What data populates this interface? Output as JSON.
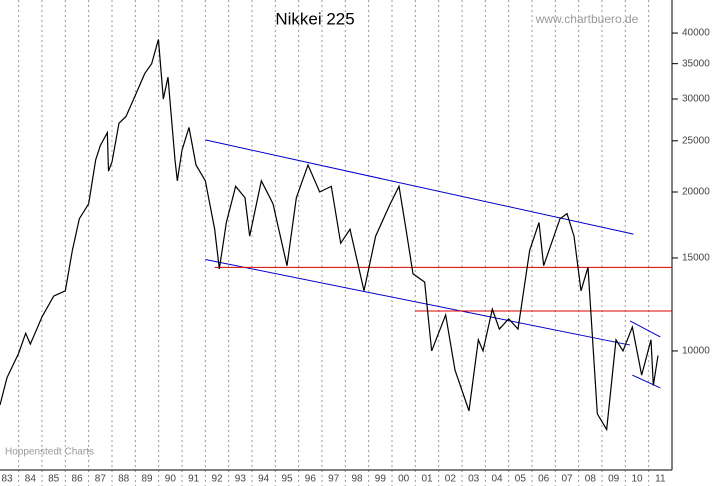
{
  "chart_data": {
    "type": "line",
    "title": "Nikkei 225",
    "source": "www.chartbuero.de",
    "credit": "Hoppenstedt Charts",
    "log_scale": true,
    "grid": true,
    "xlim": [
      1983.2,
      2012
    ],
    "ylim": [
      5950,
      46200
    ],
    "yticks": [
      10000,
      15000,
      20000,
      25000,
      30000,
      35000,
      40000
    ],
    "xgrid": [
      1984,
      1985,
      1986,
      1987,
      1988,
      1989,
      1990,
      1991,
      1992,
      1993,
      1994,
      1995,
      1996,
      1997,
      1998,
      1999,
      2000,
      2001,
      2002,
      2003,
      2004,
      2005,
      2006,
      2007,
      2008,
      2009,
      2010,
      2011
    ],
    "xticks": [
      {
        "value": 1983.5,
        "label": "83"
      },
      {
        "value": 1984.5,
        "label": "84"
      },
      {
        "value": 1985.5,
        "label": "85"
      },
      {
        "value": 1986.5,
        "label": "86"
      },
      {
        "value": 1987.5,
        "label": "87"
      },
      {
        "value": 1988.5,
        "label": "88"
      },
      {
        "value": 1989.5,
        "label": "89"
      },
      {
        "value": 1990.5,
        "label": "90"
      },
      {
        "value": 1991.5,
        "label": "91"
      },
      {
        "value": 1992.5,
        "label": "92"
      },
      {
        "value": 1993.5,
        "label": "93"
      },
      {
        "value": 1994.5,
        "label": "94"
      },
      {
        "value": 1995.5,
        "label": "95"
      },
      {
        "value": 1996.5,
        "label": "96"
      },
      {
        "value": 1997.5,
        "label": "97"
      },
      {
        "value": 1998.5,
        "label": "98"
      },
      {
        "value": 1999.5,
        "label": "99"
      },
      {
        "value": 2000.5,
        "label": "00"
      },
      {
        "value": 2001.5,
        "label": "01"
      },
      {
        "value": 2002.5,
        "label": "02"
      },
      {
        "value": 2003.5,
        "label": "03"
      },
      {
        "value": 2004.5,
        "label": "04"
      },
      {
        "value": 2005.5,
        "label": "05"
      },
      {
        "value": 2006.5,
        "label": "06"
      },
      {
        "value": 2007.5,
        "label": "07"
      },
      {
        "value": 2008.5,
        "label": "08"
      },
      {
        "value": 2009.5,
        "label": "09"
      },
      {
        "value": 2010.5,
        "label": "10"
      },
      {
        "value": 2011.5,
        "label": "11"
      }
    ],
    "x": [
      1983.2,
      1983.5,
      1984.0,
      1984.3,
      1984.5,
      1985.0,
      1985.5,
      1986.0,
      1986.3,
      1986.6,
      1987.0,
      1987.3,
      1987.5,
      1987.8,
      1987.85,
      1988.0,
      1988.3,
      1988.6,
      1989.0,
      1989.4,
      1989.7,
      1989.99,
      1990.2,
      1990.4,
      1990.7,
      1990.8,
      1991.0,
      1991.3,
      1991.6,
      1992.0,
      1992.4,
      1992.6,
      1992.9,
      1993.3,
      1993.7,
      1993.9,
      1994.4,
      1994.9,
      1995.5,
      1995.9,
      1996.4,
      1996.9,
      1997.4,
      1997.8,
      1998.2,
      1998.8,
      1999.3,
      1999.9,
      2000.3,
      2000.6,
      2000.9,
      2001.4,
      2001.7,
      2002.3,
      2002.7,
      2003.3,
      2003.7,
      2003.9,
      2004.3,
      2004.6,
      2005.0,
      2005.4,
      2005.9,
      2006.3,
      2006.5,
      2007.2,
      2007.5,
      2007.8,
      2008.1,
      2008.4,
      2008.8,
      2009.2,
      2009.6,
      2009.9,
      2010.3,
      2010.7,
      2011.1,
      2011.2,
      2011.4
    ],
    "series": [
      {
        "color": "#000000",
        "values": [
          7900,
          8900,
          9900,
          10800,
          10300,
          11600,
          12700,
          13000,
          15500,
          17800,
          19000,
          23000,
          24500,
          25900,
          21900,
          22800,
          27000,
          27800,
          30500,
          33500,
          35000,
          38900,
          30000,
          33000,
          23000,
          21000,
          24000,
          26500,
          22500,
          21000,
          17000,
          14300,
          17500,
          20500,
          19500,
          16500,
          21000,
          19000,
          14500,
          19500,
          22500,
          20000,
          20500,
          16000,
          17000,
          13000,
          16500,
          18900,
          20500,
          17000,
          14000,
          13500,
          10000,
          11700,
          9200,
          7700,
          10500,
          10000,
          12000,
          11000,
          11500,
          11000,
          15500,
          17500,
          14500,
          17800,
          18200,
          16500,
          13000,
          14400,
          7600,
          7100,
          10500,
          10000,
          11100,
          9000,
          10500,
          8600,
          9800
        ]
      }
    ],
    "lines": [
      {
        "color": "#0000cc",
        "x": [
          1992.0,
          2010.35
        ],
        "y": [
          25100,
          16640
        ]
      },
      {
        "color": "#0000cc",
        "x": [
          1992.0,
          2010.2
        ],
        "y": [
          14900,
          10260
        ]
      },
      {
        "color": "#dd0000",
        "x": [
          1992.4,
          2012
        ],
        "y": [
          14400,
          14400
        ]
      },
      {
        "color": "#dd0000",
        "x": [
          2001.0,
          2012
        ],
        "y": [
          11900,
          11900
        ]
      },
      {
        "color": "#0000cc",
        "x": [
          2010.2,
          2011.5
        ],
        "y": [
          11400,
          10630
        ]
      },
      {
        "color": "#0000cc",
        "x": [
          2010.3,
          2011.5
        ],
        "y": [
          9000,
          8510
        ]
      }
    ]
  }
}
